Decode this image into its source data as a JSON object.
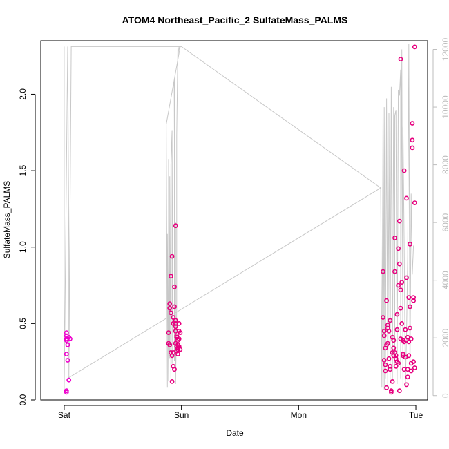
{
  "chart_data": {
    "type": "scatter",
    "title": "ATOM4 Northeast_Pacific_2 SulfateMass_PALMS",
    "xlabel": "Date",
    "ylabel": "SulfateMass_PALMS",
    "x_tick_labels": [
      "Sat",
      "Sun",
      "Mon",
      "Tue"
    ],
    "x_tick_days": [
      0,
      1,
      2,
      3
    ],
    "x_range_days": [
      -0.2,
      3.1
    ],
    "ylim": [
      0,
      2.35
    ],
    "y_ticks": [
      "0.0",
      "0.5",
      "1.0",
      "1.5",
      "2.0"
    ],
    "y2lim": [
      -150,
      12300
    ],
    "y2_ticks": [
      "0",
      "2000",
      "4000",
      "6000",
      "8000",
      "10000",
      "12000"
    ],
    "grid": false,
    "legend": "none",
    "colors": {
      "points": "#e6007e",
      "points_early": "#ee00cc",
      "altitude_line": "#c8c8c8",
      "axis": "#000000",
      "y2_axis": "#bdbdbd"
    },
    "series": [
      {
        "axis": "left",
        "style": "points",
        "days": [
          0.02,
          0.02,
          0.02,
          0.02,
          0.02,
          0.03,
          0.03,
          0.04,
          0.02,
          0.02,
          0.04,
          0.05,
          0.89,
          0.89,
          0.9,
          0.9,
          0.9,
          0.91,
          0.91,
          0.91,
          0.92,
          0.92,
          0.92,
          0.93,
          0.93,
          0.93,
          0.93,
          0.94,
          0.94,
          0.94,
          0.95,
          0.95,
          0.95,
          0.95,
          0.95,
          0.95,
          0.96,
          0.96,
          0.96,
          0.96,
          0.97,
          0.97,
          0.97,
          0.97,
          0.97,
          0.98,
          0.98,
          0.98,
          0.98,
          0.99,
          0.99,
          2.72,
          2.72,
          2.73,
          2.73,
          2.73,
          2.74,
          2.74,
          2.74,
          2.75,
          2.75,
          2.75,
          2.76,
          2.76,
          2.76,
          2.77,
          2.77,
          2.78,
          2.78,
          2.78,
          2.79,
          2.79,
          2.8,
          2.8,
          2.8,
          2.81,
          2.81,
          2.81,
          2.82,
          2.82,
          2.82,
          2.83,
          2.83,
          2.83,
          2.84,
          2.84,
          2.84,
          2.85,
          2.85,
          2.85,
          2.86,
          2.86,
          2.86,
          2.87,
          2.87,
          2.87,
          2.88,
          2.88,
          2.89,
          2.89,
          2.89,
          2.9,
          2.9,
          2.9,
          2.91,
          2.91,
          2.92,
          2.92,
          2.92,
          2.93,
          2.93,
          2.93,
          2.94,
          2.94,
          2.94,
          2.95,
          2.95,
          2.95,
          2.96,
          2.96,
          2.96,
          2.97,
          2.97,
          2.97,
          2.98,
          2.98,
          2.98,
          2.99,
          2.99
        ],
        "values": [
          0.44,
          0.42,
          0.4,
          0.39,
          0.3,
          0.26,
          0.36,
          0.13,
          0.06,
          0.05,
          0.41,
          0.4,
          0.44,
          0.37,
          0.36,
          0.63,
          0.6,
          0.57,
          0.31,
          0.81,
          0.94,
          0.12,
          0.29,
          0.5,
          0.22,
          0.54,
          0.31,
          0.2,
          0.61,
          0.74,
          1.14,
          0.52,
          0.48,
          0.45,
          0.37,
          0.5,
          0.42,
          0.35,
          0.32,
          0.41,
          0.39,
          0.34,
          0.3,
          0.36,
          0.33,
          0.45,
          0.5,
          0.35,
          0.4,
          0.44,
          0.33,
          0.84,
          0.54,
          0.45,
          0.42,
          0.26,
          0.23,
          0.19,
          0.34,
          0.36,
          0.65,
          0.08,
          0.49,
          0.47,
          0.37,
          0.27,
          0.45,
          0.52,
          0.22,
          0.2,
          0.06,
          0.05,
          0.12,
          0.31,
          0.41,
          0.39,
          0.34,
          0.29,
          0.31,
          1.06,
          0.84,
          0.22,
          0.27,
          0.29,
          0.25,
          0.46,
          0.56,
          0.99,
          0.75,
          0.24,
          0.06,
          1.17,
          0.89,
          0.4,
          0.6,
          0.72,
          0.77,
          0.5,
          0.29,
          0.3,
          0.39,
          0.38,
          1.5,
          0.2,
          0.28,
          0.46,
          0.8,
          1.32,
          0.1,
          0.15,
          0.2,
          0.41,
          0.67,
          0.29,
          0.38,
          0.61,
          1.02,
          0.47,
          0.24,
          0.19,
          0.4,
          1.7,
          1.81,
          1.65,
          0.67,
          0.65,
          0.25,
          0.21,
          1.29
        ],
        "extra_points": {
          "days": [
            2.87,
            2.99
          ],
          "values": [
            2.23,
            2.31
          ]
        }
      },
      {
        "axis": "right",
        "style": "line",
        "days": [
          0.0,
          0.0,
          0.03,
          0.04,
          0.04,
          0.06,
          0.99,
          0.99,
          0.87,
          0.88,
          0.88,
          0.89,
          0.89,
          0.9,
          0.9,
          0.91,
          0.91,
          0.92,
          0.92,
          0.93,
          0.93,
          0.94,
          0.94,
          0.95,
          0.95,
          0.96,
          0.96,
          0.97,
          0.97,
          0.98,
          0.98,
          0.99,
          0.99,
          1.0,
          2.7,
          2.71,
          2.72,
          2.73,
          2.73,
          2.74,
          2.75,
          2.76,
          2.77,
          2.77,
          2.78,
          2.79,
          2.8,
          2.81,
          2.82,
          2.82,
          2.83,
          2.84,
          2.85,
          2.86,
          2.87,
          2.87,
          2.88,
          2.89,
          2.89,
          2.9,
          2.91,
          2.92,
          2.93,
          2.94,
          2.94,
          2.95,
          2.96,
          2.97,
          2.98
        ],
        "values": [
          12100,
          200,
          12100,
          5000,
          600,
          12100,
          12100,
          12100,
          9400,
          300,
          5600,
          500,
          8200,
          1300,
          7600,
          600,
          8000,
          9200,
          1100,
          10500,
          10600,
          11000,
          1200,
          6000,
          400,
          3000,
          9000,
          12100,
          11800,
          12100,
          12000,
          12100,
          12100,
          12100,
          7200,
          300,
          9800,
          200,
          10000,
          600,
          10300,
          300,
          7600,
          9800,
          400,
          10700,
          500,
          10000,
          1100,
          9700,
          9900,
          400,
          10600,
          10400,
          11300,
          600,
          12000,
          300,
          9300,
          5200,
          300,
          2100,
          4800,
          11900,
          12200,
          600,
          7000,
          4200,
          5200
        ]
      }
    ]
  }
}
